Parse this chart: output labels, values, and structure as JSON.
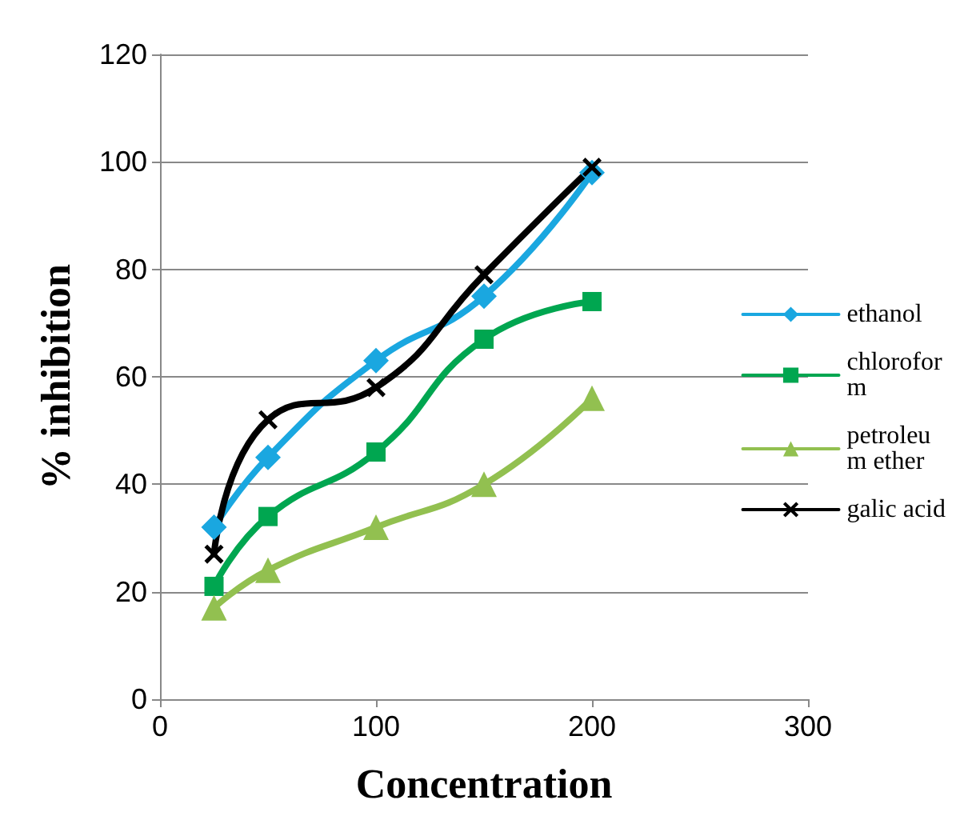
{
  "chart_data": {
    "type": "line",
    "xlabel": "Concentration",
    "ylabel": "% inhibition",
    "x": [
      25,
      50,
      100,
      150,
      200
    ],
    "series": [
      {
        "name": "ethanol",
        "color": "#1aa7e0",
        "marker": "diamond",
        "values": [
          32,
          45,
          63,
          75,
          98
        ]
      },
      {
        "name": "chloroform",
        "color": "#00a650",
        "marker": "square",
        "values": [
          21,
          34,
          46,
          67,
          74
        ]
      },
      {
        "name": "petroleum ether",
        "color": "#92c050",
        "marker": "triangle",
        "values": [
          17,
          24,
          32,
          40,
          56
        ]
      },
      {
        "name": "galic acid",
        "color": "#000000",
        "marker": "cross",
        "values": [
          27,
          52,
          58,
          79,
          99
        ]
      }
    ],
    "xlim": [
      0,
      300
    ],
    "xticks": [
      0,
      100,
      200,
      300
    ],
    "ylim": [
      0,
      120
    ],
    "yticks": [
      0,
      20,
      40,
      60,
      80,
      100,
      120
    ],
    "grid": "y",
    "legend": "right"
  }
}
